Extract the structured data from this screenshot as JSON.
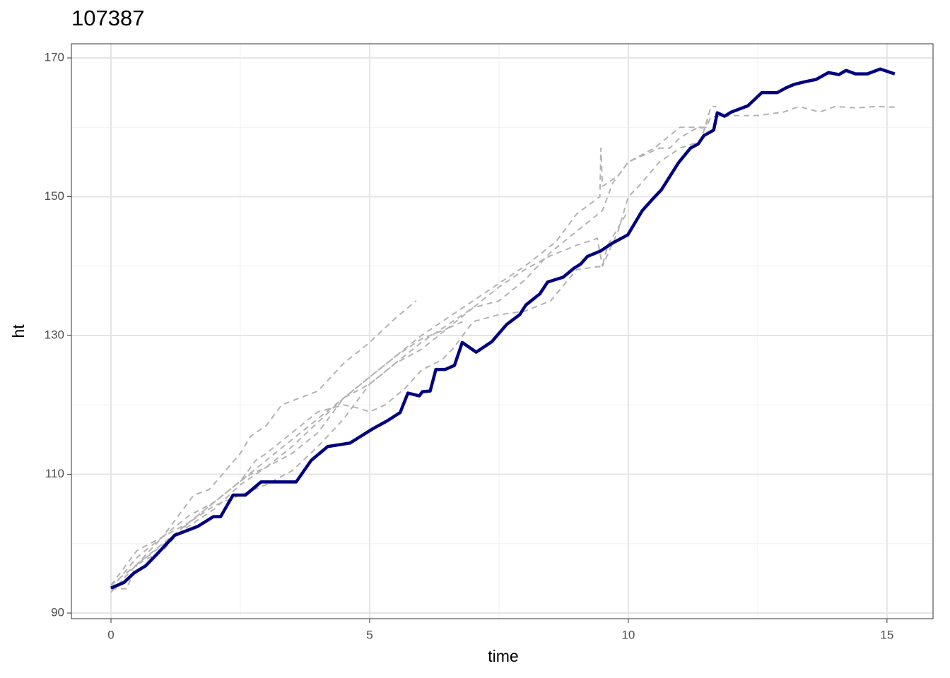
{
  "chart_data": {
    "type": "line",
    "title": "107387",
    "x_label": "time",
    "y_label": "ht",
    "xlim": [
      -0.765,
      15.89
    ],
    "ylim": [
      89.19,
      172.04
    ],
    "xticks": [
      0,
      5,
      10,
      15
    ],
    "yticks": [
      90,
      110,
      130,
      150,
      170
    ],
    "x_minor_ticks": [
      2.5,
      7.5,
      12.5
    ],
    "y_minor_ticks": [
      100,
      120,
      140,
      160
    ],
    "grid": true,
    "series": [
      {
        "color": "#b3b3b3",
        "linestyle": "dashed",
        "x": [
          0,
          0.5,
          1,
          1.3,
          1.6,
          1.9,
          2.5,
          2.7,
          3,
          3.3,
          4,
          4.5,
          5,
          5.5,
          5.9
        ],
        "values": [
          93.5,
          98,
          101,
          104,
          107,
          107.8,
          113,
          115.5,
          117,
          120,
          122,
          126,
          129,
          132.5,
          135
        ]
      },
      {
        "color": "#b3b3b3",
        "linestyle": "dashed",
        "x": [
          0,
          1,
          2,
          3,
          4,
          5,
          6,
          7,
          8,
          8.6,
          9,
          9.45,
          9.47,
          9.5,
          9.8,
          10,
          10.3,
          10.6,
          10.8,
          11,
          11.3,
          11.5,
          11.6,
          12,
          12.5,
          13,
          13.3,
          13.7,
          14,
          14.4,
          14.8,
          15.15
        ],
        "values": [
          94,
          100,
          106,
          112,
          118,
          124,
          130,
          135,
          140,
          143.5,
          147.5,
          150,
          157,
          151.5,
          153,
          155,
          156,
          157,
          157,
          158.5,
          159.8,
          160,
          161.5,
          161.7,
          161.7,
          162.2,
          163,
          162.2,
          163,
          162.8,
          163,
          162.9
        ]
      },
      {
        "color": "#b3b3b3",
        "linestyle": "dashed",
        "x": [
          0,
          0.5,
          1,
          1.5,
          2,
          2.5,
          3,
          3.5,
          4,
          4.5,
          5,
          5.5,
          6,
          6.5,
          7,
          7.5,
          8,
          8.5,
          9,
          9.4,
          9.5,
          9.8,
          10,
          10.2,
          10.6,
          11,
          11.4,
          11.6,
          11.7
        ],
        "values": [
          93,
          97,
          99.8,
          102.5,
          105,
          108.5,
          111,
          113,
          116,
          121,
          123,
          126,
          129,
          131.5,
          134,
          137,
          139.5,
          141.5,
          143,
          144,
          140,
          145,
          150,
          151.5,
          155,
          157,
          158,
          163,
          163
        ]
      },
      {
        "color": "#b3b3b3",
        "linestyle": "dashed",
        "x": [
          0,
          0.3,
          0.5,
          1,
          1.5,
          2,
          2.5,
          2.8,
          3,
          3.5,
          4,
          4.5,
          4.8,
          5,
          5.3,
          5.7,
          6,
          6.4,
          6.6,
          7,
          7.5,
          8,
          8.5,
          9,
          9.5,
          9.6,
          10
        ],
        "values": [
          93.5,
          93.5,
          97,
          101,
          104,
          106,
          109,
          112,
          113,
          116,
          119,
          120,
          119.5,
          119,
          120,
          122.5,
          125,
          126.5,
          128,
          132,
          133,
          133.5,
          135,
          139.5,
          140,
          143,
          148
        ]
      },
      {
        "color": "#b3b3b3",
        "linestyle": "dashed",
        "x": [
          0,
          0.5,
          1,
          1.5,
          2,
          2.5,
          2.7,
          3,
          3.5,
          4,
          4.5,
          5,
          5.5,
          6,
          6.5,
          7,
          7.5,
          8,
          8.5,
          9,
          9.5,
          9.7,
          10,
          10.5,
          11,
          11.5,
          11.55
        ],
        "values": [
          94,
          99,
          101,
          103,
          106,
          109,
          110,
          111,
          114,
          117.5,
          121,
          124,
          127,
          129.5,
          131,
          134,
          135,
          138,
          142,
          145,
          148,
          152,
          155,
          157,
          160,
          160,
          162
        ]
      },
      {
        "color": "#b3b3b3",
        "linestyle": "dashed",
        "x": [
          0,
          0.5,
          1,
          1.5,
          2,
          2.5,
          3,
          3.5,
          4,
          4.5,
          5,
          5.5,
          6,
          6.5,
          6.8
        ],
        "values": [
          93,
          97,
          99,
          103,
          105.5,
          107,
          108.5,
          110.5,
          114,
          118,
          123,
          126,
          128,
          131,
          132
        ]
      },
      {
        "color": "#000080",
        "linestyle": "solid",
        "x": [
          0,
          0.25,
          0.45,
          0.67,
          0.89,
          1.23,
          1.68,
          1.98,
          2.12,
          2.36,
          2.6,
          2.9,
          3.58,
          3.87,
          4.19,
          4.62,
          5.07,
          5.34,
          5.59,
          5.74,
          5.96,
          6.02,
          6.17,
          6.28,
          6.46,
          6.64,
          6.79,
          7.06,
          7.36,
          7.65,
          7.9,
          8.02,
          8.29,
          8.44,
          8.74,
          8.95,
          9.08,
          9.21,
          9.47,
          9.69,
          9.99,
          10.19,
          10.27,
          10.45,
          10.64,
          10.97,
          11.2,
          11.35,
          11.46,
          11.65,
          11.72,
          11.86,
          11.99,
          12.31,
          12.58,
          12.88,
          13.05,
          13.21,
          13.43,
          13.63,
          13.87,
          14.07,
          14.21,
          14.39,
          14.62,
          14.87,
          15.15
        ],
        "values": [
          93.6,
          94.4,
          95.8,
          96.8,
          98.5,
          101.2,
          102.5,
          103.9,
          103.9,
          107,
          107,
          108.9,
          108.9,
          112,
          114,
          114.5,
          116.6,
          117.7,
          118.9,
          121.7,
          121.3,
          121.9,
          122,
          125.1,
          125.1,
          125.7,
          129,
          127.6,
          129.1,
          131.6,
          133,
          134.4,
          136,
          137.7,
          138.4,
          139.7,
          140.3,
          141.4,
          142.2,
          143.3,
          144.5,
          147,
          148,
          149.5,
          151,
          154.9,
          157,
          157.6,
          158.8,
          159.6,
          162.1,
          161.6,
          162.2,
          163.1,
          165,
          165,
          165.7,
          166.2,
          166.6,
          166.9,
          167.9,
          167.6,
          168.2,
          167.7,
          167.7,
          168.4,
          167.7
        ]
      }
    ]
  }
}
